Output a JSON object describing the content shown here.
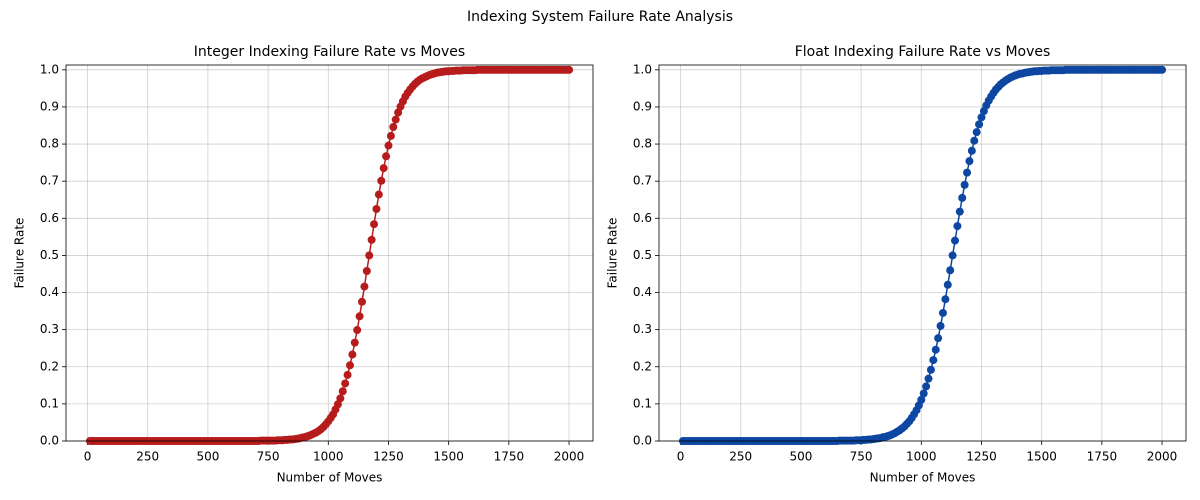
{
  "title": "Indexing System Failure Rate Analysis",
  "chart_data": [
    {
      "type": "line",
      "title": "Integer Indexing Failure Rate vs Moves",
      "xlabel": "Number of Moves",
      "ylabel": "Failure Rate",
      "color": "#b71c1c",
      "grid": true,
      "xlim": [
        -89.5,
        2099.5
      ],
      "ylim": [
        0,
        1.013
      ],
      "xticks": [
        0,
        250,
        500,
        750,
        1000,
        1250,
        1500,
        1750,
        2000
      ],
      "yticks": [
        {
          "value": 0,
          "label": "0.0"
        },
        {
          "value": 0.1,
          "label": "0.1"
        },
        {
          "value": 0.2,
          "label": "0.2"
        },
        {
          "value": 0.3,
          "label": "0.3"
        },
        {
          "value": 0.4,
          "label": "0.4"
        },
        {
          "value": 0.5,
          "label": "0.5"
        },
        {
          "value": 0.6,
          "label": "0.6"
        },
        {
          "value": 0.7,
          "label": "0.7"
        },
        {
          "value": 0.8,
          "label": "0.8"
        },
        {
          "value": 0.9,
          "label": "0.9"
        },
        {
          "value": 1,
          "label": "1.0"
        }
      ],
      "x": [
        10,
        20,
        30,
        40,
        50,
        60,
        70,
        80,
        90,
        100,
        110,
        120,
        130,
        140,
        150,
        160,
        170,
        180,
        190,
        200,
        210,
        220,
        230,
        240,
        250,
        260,
        270,
        280,
        290,
        300,
        310,
        320,
        330,
        340,
        350,
        360,
        370,
        380,
        390,
        400,
        410,
        420,
        430,
        440,
        450,
        460,
        470,
        480,
        490,
        500,
        510,
        520,
        530,
        540,
        550,
        560,
        570,
        580,
        590,
        600,
        610,
        620,
        630,
        640,
        650,
        660,
        670,
        680,
        690,
        700,
        710,
        720,
        730,
        740,
        750,
        760,
        770,
        780,
        790,
        800,
        810,
        820,
        830,
        840,
        850,
        860,
        870,
        880,
        890,
        900,
        910,
        920,
        930,
        940,
        950,
        960,
        970,
        980,
        990,
        1000,
        1010,
        1020,
        1030,
        1040,
        1050,
        1060,
        1070,
        1080,
        1090,
        1100,
        1110,
        1120,
        1130,
        1140,
        1150,
        1160,
        1170,
        1180,
        1190,
        1200,
        1210,
        1220,
        1230,
        1240,
        1250,
        1260,
        1270,
        1280,
        1290,
        1300,
        1310,
        1320,
        1330,
        1340,
        1350,
        1360,
        1370,
        1380,
        1390,
        1400,
        1410,
        1420,
        1430,
        1440,
        1450,
        1460,
        1470,
        1480,
        1490,
        1500,
        1510,
        1520,
        1530,
        1540,
        1550,
        1560,
        1570,
        1580,
        1590,
        1600,
        1610,
        1620,
        1630,
        1640,
        1650,
        1660,
        1670,
        1680,
        1690,
        1700,
        1710,
        1720,
        1730,
        1740,
        1750,
        1760,
        1770,
        1780,
        1790,
        1800,
        1810,
        1820,
        1830,
        1840,
        1850,
        1860,
        1870,
        1880,
        1890,
        1900,
        1910,
        1920,
        1930,
        1940,
        1950,
        1960,
        1970,
        1980,
        1990,
        2000
      ],
      "values": [
        0,
        0,
        0,
        0,
        0,
        0,
        0,
        0,
        0,
        0,
        0,
        0,
        0,
        0,
        0,
        0,
        0,
        0,
        0,
        0,
        0,
        0,
        0,
        0,
        0,
        0,
        0,
        0,
        0,
        0,
        0,
        0,
        0,
        0,
        0,
        0,
        0,
        0,
        0,
        0,
        0,
        0,
        0,
        0,
        0,
        0,
        0,
        0,
        0,
        0,
        0,
        0,
        0,
        0,
        0,
        0,
        0,
        0,
        0,
        0,
        0,
        0,
        0,
        0,
        0,
        0,
        0,
        0,
        0,
        0,
        0,
        0.001,
        0.001,
        0.001,
        0.001,
        0.001,
        0.001,
        0.001,
        0.002,
        0.002,
        0.002,
        0.003,
        0.003,
        0.004,
        0.004,
        0.005,
        0.006,
        0.007,
        0.009,
        0.01,
        0.012,
        0.014,
        0.017,
        0.02,
        0.023,
        0.027,
        0.032,
        0.038,
        0.045,
        0.053,
        0.062,
        0.072,
        0.085,
        0.099,
        0.115,
        0.134,
        0.155,
        0.178,
        0.204,
        0.233,
        0.265,
        0.299,
        0.336,
        0.375,
        0.416,
        0.458,
        0.5,
        0.542,
        0.584,
        0.625,
        0.664,
        0.701,
        0.735,
        0.767,
        0.796,
        0.822,
        0.846,
        0.866,
        0.885,
        0.901,
        0.915,
        0.928,
        0.938,
        0.947,
        0.955,
        0.962,
        0.968,
        0.973,
        0.977,
        0.98,
        0.983,
        0.986,
        0.988,
        0.99,
        0.992,
        0.993,
        0.994,
        0.995,
        0.996,
        0.996,
        0.997,
        0.997,
        0.998,
        0.998,
        0.998,
        0.999,
        0.999,
        0.999,
        0.999,
        0.999,
        0.999,
        1,
        1,
        1,
        1,
        1,
        1,
        1,
        1,
        1,
        1,
        1,
        1,
        1,
        1,
        1,
        1,
        1,
        1,
        1,
        1,
        1,
        1,
        1,
        1,
        1,
        1,
        1,
        1,
        1,
        1,
        1,
        1,
        1,
        1,
        1,
        1,
        1,
        1,
        1
      ]
    },
    {
      "type": "line",
      "title": "Float Indexing Failure Rate vs Moves",
      "xlabel": "Number of Moves",
      "ylabel": "Failure Rate",
      "color": "#0d47a1",
      "grid": true,
      "xlim": [
        -89.5,
        2099.5
      ],
      "ylim": [
        0,
        1.013
      ],
      "xticks": [
        0,
        250,
        500,
        750,
        1000,
        1250,
        1500,
        1750,
        2000
      ],
      "yticks": [
        {
          "value": 0,
          "label": "0.0"
        },
        {
          "value": 0.1,
          "label": "0.1"
        },
        {
          "value": 0.2,
          "label": "0.2"
        },
        {
          "value": 0.3,
          "label": "0.3"
        },
        {
          "value": 0.4,
          "label": "0.4"
        },
        {
          "value": 0.5,
          "label": "0.5"
        },
        {
          "value": 0.6,
          "label": "0.6"
        },
        {
          "value": 0.7,
          "label": "0.7"
        },
        {
          "value": 0.8,
          "label": "0.8"
        },
        {
          "value": 0.9,
          "label": "0.9"
        },
        {
          "value": 1,
          "label": "1.0"
        }
      ],
      "x": [
        10,
        20,
        30,
        40,
        50,
        60,
        70,
        80,
        90,
        100,
        110,
        120,
        130,
        140,
        150,
        160,
        170,
        180,
        190,
        200,
        210,
        220,
        230,
        240,
        250,
        260,
        270,
        280,
        290,
        300,
        310,
        320,
        330,
        340,
        350,
        360,
        370,
        380,
        390,
        400,
        410,
        420,
        430,
        440,
        450,
        460,
        470,
        480,
        490,
        500,
        510,
        520,
        530,
        540,
        550,
        560,
        570,
        580,
        590,
        600,
        610,
        620,
        630,
        640,
        650,
        660,
        670,
        680,
        690,
        700,
        710,
        720,
        730,
        740,
        750,
        760,
        770,
        780,
        790,
        800,
        810,
        820,
        830,
        840,
        850,
        860,
        870,
        880,
        890,
        900,
        910,
        920,
        930,
        940,
        950,
        960,
        970,
        980,
        990,
        1000,
        1010,
        1020,
        1030,
        1040,
        1050,
        1060,
        1070,
        1080,
        1090,
        1100,
        1110,
        1120,
        1130,
        1140,
        1150,
        1160,
        1170,
        1180,
        1190,
        1200,
        1210,
        1220,
        1230,
        1240,
        1250,
        1260,
        1270,
        1280,
        1290,
        1300,
        1310,
        1320,
        1330,
        1340,
        1350,
        1360,
        1370,
        1380,
        1390,
        1400,
        1410,
        1420,
        1430,
        1440,
        1450,
        1460,
        1470,
        1480,
        1490,
        1500,
        1510,
        1520,
        1530,
        1540,
        1550,
        1560,
        1570,
        1580,
        1590,
        1600,
        1610,
        1620,
        1630,
        1640,
        1650,
        1660,
        1670,
        1680,
        1690,
        1700,
        1710,
        1720,
        1730,
        1740,
        1750,
        1760,
        1770,
        1780,
        1790,
        1800,
        1810,
        1820,
        1830,
        1840,
        1850,
        1860,
        1870,
        1880,
        1890,
        1900,
        1910,
        1920,
        1930,
        1940,
        1950,
        1960,
        1970,
        1980,
        1990,
        2000
      ],
      "values": [
        0,
        0,
        0,
        0,
        0,
        0,
        0,
        0,
        0,
        0,
        0,
        0,
        0,
        0,
        0,
        0,
        0,
        0,
        0,
        0,
        0,
        0,
        0,
        0,
        0,
        0,
        0,
        0,
        0,
        0,
        0,
        0,
        0,
        0,
        0,
        0,
        0,
        0,
        0,
        0,
        0,
        0,
        0,
        0,
        0,
        0,
        0,
        0,
        0,
        0,
        0,
        0,
        0,
        0,
        0,
        0,
        0,
        0,
        0,
        0,
        0,
        0,
        0,
        0,
        0,
        0.001,
        0.001,
        0.001,
        0.001,
        0.001,
        0.001,
        0.001,
        0.002,
        0.002,
        0.002,
        0.003,
        0.003,
        0.004,
        0.004,
        0.005,
        0.006,
        0.007,
        0.008,
        0.01,
        0.011,
        0.013,
        0.015,
        0.018,
        0.021,
        0.025,
        0.029,
        0.034,
        0.039,
        0.046,
        0.053,
        0.062,
        0.072,
        0.083,
        0.096,
        0.111,
        0.128,
        0.147,
        0.168,
        0.192,
        0.218,
        0.246,
        0.277,
        0.31,
        0.345,
        0.382,
        0.421,
        0.46,
        0.5,
        0.54,
        0.579,
        0.618,
        0.655,
        0.69,
        0.723,
        0.754,
        0.782,
        0.809,
        0.832,
        0.853,
        0.872,
        0.889,
        0.904,
        0.917,
        0.928,
        0.938,
        0.947,
        0.954,
        0.961,
        0.966,
        0.971,
        0.975,
        0.979,
        0.982,
        0.985,
        0.987,
        0.989,
        0.99,
        0.992,
        0.993,
        0.994,
        0.995,
        0.996,
        0.996,
        0.997,
        0.997,
        0.998,
        0.998,
        0.998,
        0.999,
        0.999,
        0.999,
        0.999,
        0.999,
        0.999,
        1,
        1,
        1,
        1,
        1,
        1,
        1,
        1,
        1,
        1,
        1,
        1,
        1,
        1,
        1,
        1,
        1,
        1,
        1,
        1,
        1,
        1,
        1,
        1,
        1,
        1,
        1,
        1,
        1,
        1,
        1,
        1,
        1,
        1,
        1,
        1,
        1,
        1,
        1,
        1,
        1
      ]
    }
  ]
}
